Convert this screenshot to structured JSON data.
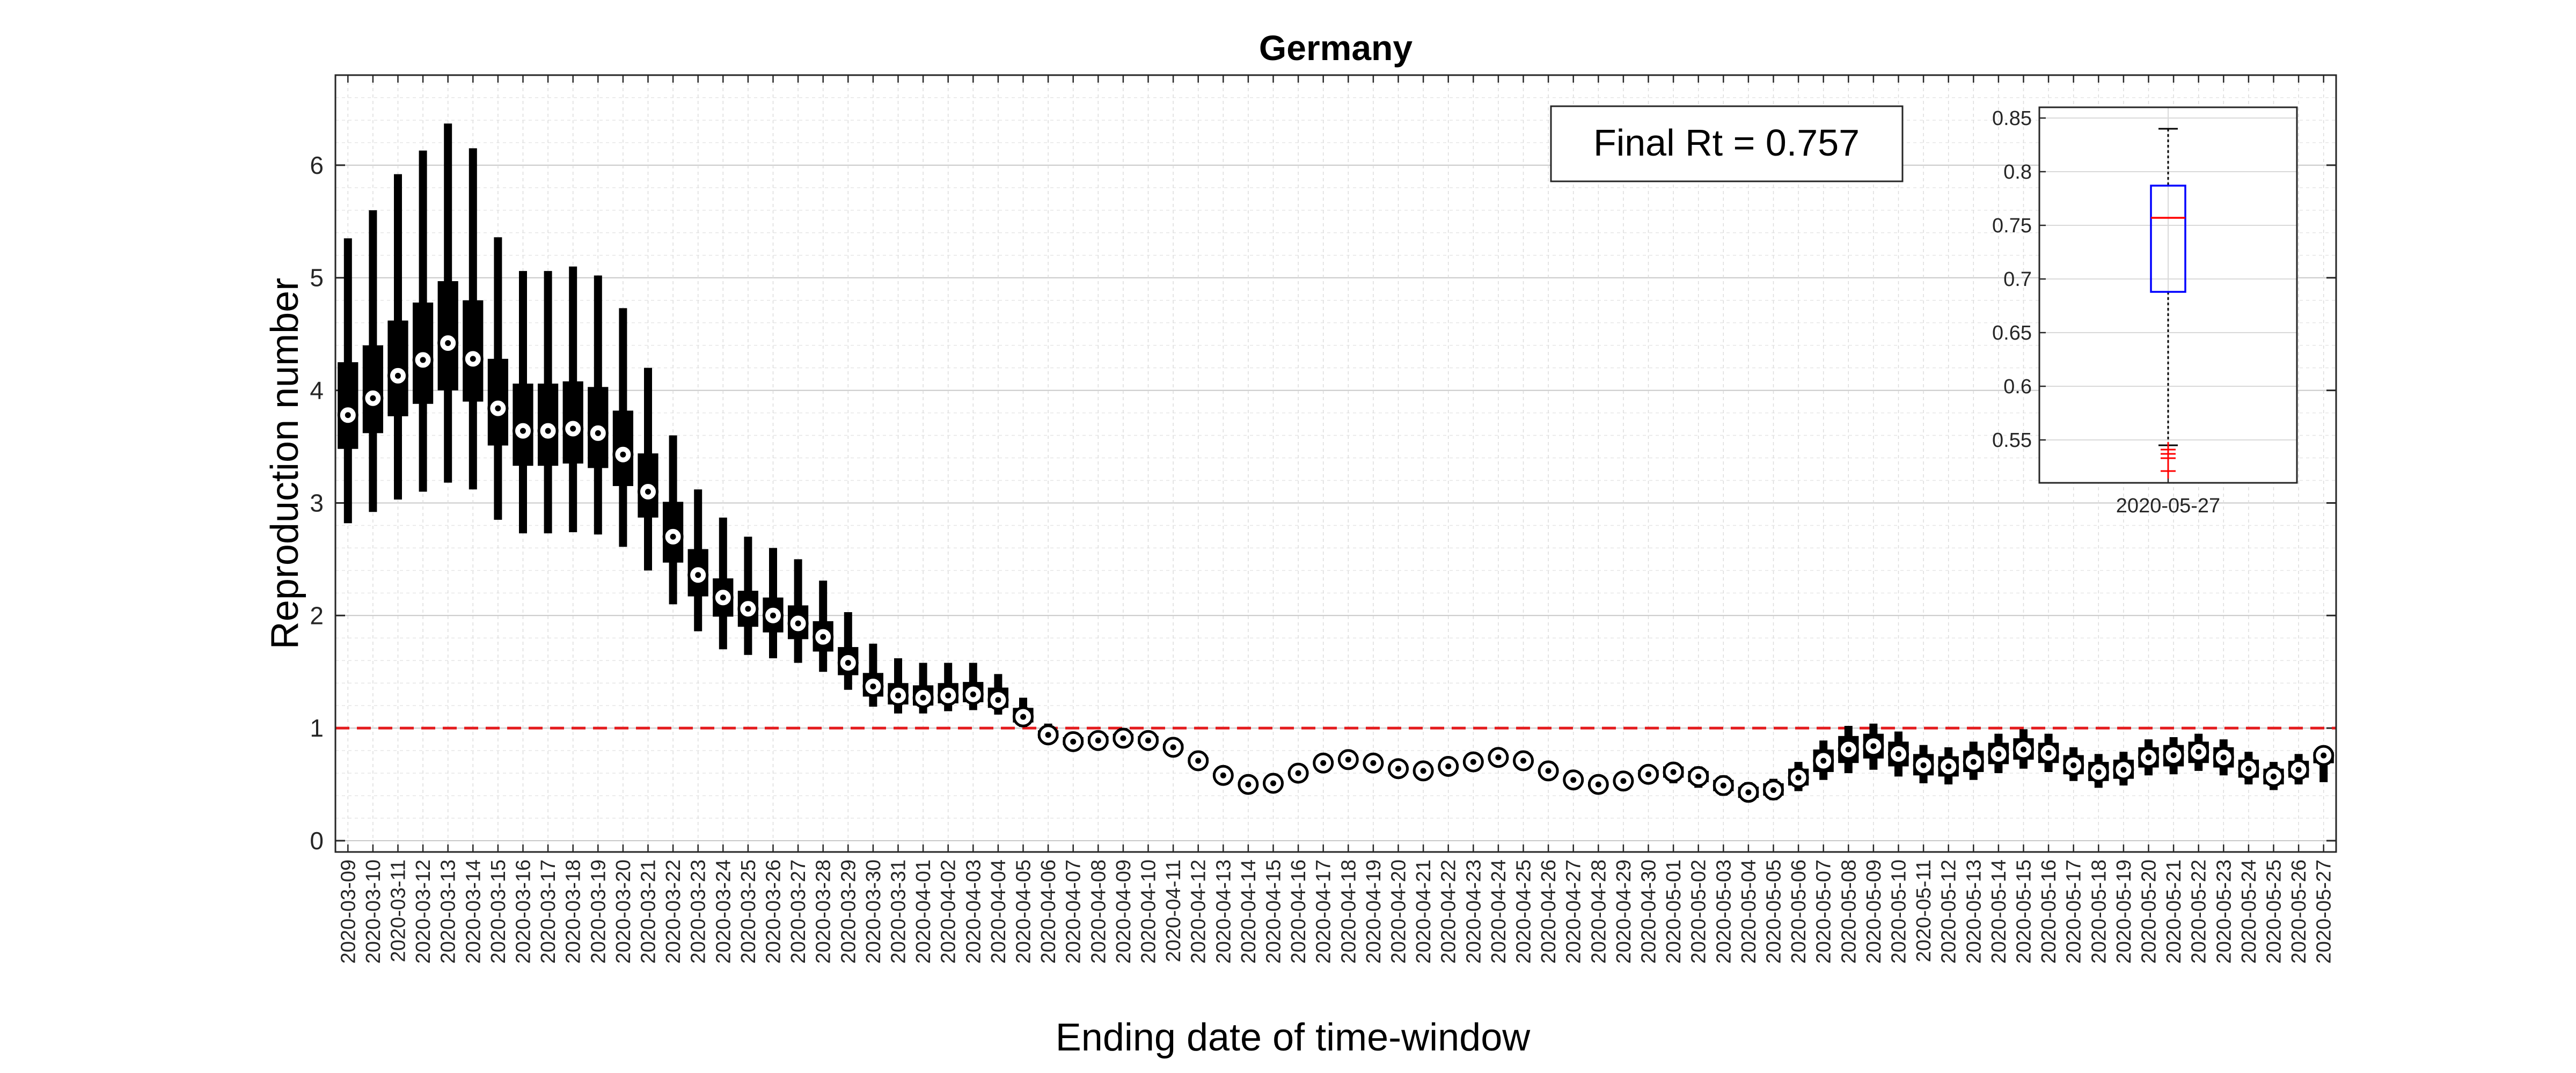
{
  "chart_data": [
    {
      "type": "box",
      "title": "Germany",
      "xlabel": "Ending date of time-window",
      "ylabel": "Reproduction number",
      "ylim": [
        -0.1,
        6.8
      ],
      "yticks": [
        0,
        1,
        2,
        3,
        4,
        5,
        6
      ],
      "grid": true,
      "reference_line": {
        "y": 1,
        "style": "dashed",
        "color": "#e41a1c"
      },
      "annotation": "Final Rt = 0.757",
      "categories": [
        "2020-03-09",
        "2020-03-10",
        "2020-03-11",
        "2020-03-12",
        "2020-03-13",
        "2020-03-14",
        "2020-03-15",
        "2020-03-16",
        "2020-03-17",
        "2020-03-18",
        "2020-03-19",
        "2020-03-20",
        "2020-03-21",
        "2020-03-22",
        "2020-03-23",
        "2020-03-24",
        "2020-03-25",
        "2020-03-26",
        "2020-03-27",
        "2020-03-28",
        "2020-03-29",
        "2020-03-30",
        "2020-03-31",
        "2020-04-01",
        "2020-04-02",
        "2020-04-03",
        "2020-04-04",
        "2020-04-05",
        "2020-04-06",
        "2020-04-07",
        "2020-04-08",
        "2020-04-09",
        "2020-04-10",
        "2020-04-11",
        "2020-04-12",
        "2020-04-13",
        "2020-04-14",
        "2020-04-15",
        "2020-04-16",
        "2020-04-17",
        "2020-04-18",
        "2020-04-19",
        "2020-04-20",
        "2020-04-21",
        "2020-04-22",
        "2020-04-23",
        "2020-04-24",
        "2020-04-25",
        "2020-04-26",
        "2020-04-27",
        "2020-04-28",
        "2020-04-29",
        "2020-04-30",
        "2020-05-01",
        "2020-05-02",
        "2020-05-03",
        "2020-05-04",
        "2020-05-05",
        "2020-05-06",
        "2020-05-07",
        "2020-05-08",
        "2020-05-09",
        "2020-05-10",
        "2020-05-11",
        "2020-05-12",
        "2020-05-13",
        "2020-05-14",
        "2020-05-15",
        "2020-05-16",
        "2020-05-17",
        "2020-05-18",
        "2020-05-19",
        "2020-05-20",
        "2020-05-21",
        "2020-05-22",
        "2020-05-23",
        "2020-05-24",
        "2020-05-25",
        "2020-05-26",
        "2020-05-27"
      ],
      "median": [
        3.78,
        3.93,
        4.13,
        4.27,
        4.42,
        4.28,
        3.84,
        3.64,
        3.64,
        3.66,
        3.62,
        3.43,
        3.1,
        2.7,
        2.36,
        2.16,
        2.06,
        2.0,
        1.93,
        1.81,
        1.58,
        1.37,
        1.29,
        1.27,
        1.29,
        1.3,
        1.25,
        1.1,
        0.94,
        0.88,
        0.89,
        0.91,
        0.89,
        0.83,
        0.71,
        0.58,
        0.5,
        0.51,
        0.6,
        0.69,
        0.72,
        0.69,
        0.64,
        0.62,
        0.66,
        0.7,
        0.74,
        0.71,
        0.62,
        0.54,
        0.5,
        0.53,
        0.59,
        0.61,
        0.57,
        0.49,
        0.43,
        0.45,
        0.56,
        0.71,
        0.81,
        0.84,
        0.77,
        0.67,
        0.66,
        0.7,
        0.77,
        0.81,
        0.78,
        0.67,
        0.61,
        0.63,
        0.74,
        0.76,
        0.79,
        0.74,
        0.64,
        0.57,
        0.63,
        0.757
      ],
      "q1": [
        3.48,
        3.62,
        3.77,
        3.88,
        4.0,
        3.9,
        3.51,
        3.33,
        3.33,
        3.35,
        3.31,
        3.15,
        2.87,
        2.47,
        2.17,
        1.99,
        1.9,
        1.85,
        1.79,
        1.68,
        1.47,
        1.28,
        1.21,
        1.2,
        1.22,
        1.23,
        1.18,
        1.05,
        0.91,
        0.85,
        0.86,
        0.88,
        0.86,
        0.81,
        0.69,
        0.57,
        0.49,
        0.5,
        0.59,
        0.68,
        0.71,
        0.68,
        0.63,
        0.61,
        0.65,
        0.69,
        0.72,
        0.69,
        0.6,
        0.52,
        0.48,
        0.51,
        0.56,
        0.56,
        0.52,
        0.44,
        0.38,
        0.4,
        0.49,
        0.61,
        0.69,
        0.73,
        0.66,
        0.58,
        0.57,
        0.61,
        0.68,
        0.72,
        0.69,
        0.59,
        0.53,
        0.55,
        0.65,
        0.66,
        0.69,
        0.65,
        0.56,
        0.5,
        0.56,
        0.688
      ],
      "q3": [
        4.25,
        4.4,
        4.62,
        4.78,
        4.97,
        4.8,
        4.28,
        4.06,
        4.06,
        4.08,
        4.03,
        3.82,
        3.44,
        3.01,
        2.59,
        2.33,
        2.22,
        2.16,
        2.09,
        1.95,
        1.72,
        1.49,
        1.4,
        1.38,
        1.4,
        1.41,
        1.36,
        1.18,
        0.98,
        0.92,
        0.93,
        0.95,
        0.93,
        0.86,
        0.74,
        0.6,
        0.52,
        0.53,
        0.62,
        0.71,
        0.74,
        0.71,
        0.66,
        0.64,
        0.68,
        0.72,
        0.76,
        0.73,
        0.64,
        0.56,
        0.52,
        0.55,
        0.63,
        0.66,
        0.62,
        0.54,
        0.48,
        0.51,
        0.64,
        0.81,
        0.93,
        0.95,
        0.88,
        0.77,
        0.75,
        0.8,
        0.87,
        0.91,
        0.87,
        0.76,
        0.7,
        0.72,
        0.83,
        0.85,
        0.88,
        0.83,
        0.72,
        0.64,
        0.71,
        0.787
      ],
      "whisker_low": [
        2.82,
        2.92,
        3.03,
        3.1,
        3.18,
        3.12,
        2.85,
        2.73,
        2.73,
        2.74,
        2.72,
        2.61,
        2.4,
        2.1,
        1.86,
        1.7,
        1.65,
        1.62,
        1.58,
        1.5,
        1.34,
        1.19,
        1.13,
        1.13,
        1.15,
        1.16,
        1.12,
        1.01,
        0.89,
        0.84,
        0.85,
        0.87,
        0.85,
        0.8,
        0.68,
        0.56,
        0.48,
        0.49,
        0.58,
        0.67,
        0.7,
        0.67,
        0.62,
        0.6,
        0.64,
        0.68,
        0.71,
        0.68,
        0.59,
        0.51,
        0.47,
        0.49,
        0.53,
        0.51,
        0.47,
        0.4,
        0.35,
        0.36,
        0.44,
        0.54,
        0.6,
        0.63,
        0.57,
        0.51,
        0.5,
        0.54,
        0.6,
        0.64,
        0.61,
        0.53,
        0.47,
        0.49,
        0.58,
        0.59,
        0.62,
        0.58,
        0.5,
        0.45,
        0.5,
        0.52
      ],
      "whisker_high": [
        5.35,
        5.6,
        5.92,
        6.13,
        6.37,
        6.15,
        5.36,
        5.06,
        5.06,
        5.1,
        5.02,
        4.73,
        4.2,
        3.6,
        3.12,
        2.87,
        2.7,
        2.6,
        2.5,
        2.31,
        2.03,
        1.75,
        1.62,
        1.58,
        1.58,
        1.58,
        1.48,
        1.27,
        1.04,
        0.96,
        0.97,
        1.0,
        0.97,
        0.9,
        0.77,
        0.63,
        0.54,
        0.55,
        0.64,
        0.73,
        0.76,
        0.73,
        0.68,
        0.66,
        0.7,
        0.74,
        0.78,
        0.75,
        0.66,
        0.58,
        0.54,
        0.57,
        0.65,
        0.69,
        0.66,
        0.58,
        0.52,
        0.55,
        0.7,
        0.89,
        1.02,
        1.04,
        0.97,
        0.85,
        0.83,
        0.88,
        0.95,
        0.99,
        0.95,
        0.83,
        0.77,
        0.79,
        0.9,
        0.92,
        0.95,
        0.9,
        0.79,
        0.7,
        0.77,
        0.84
      ]
    },
    {
      "type": "box",
      "categories": [
        "2020-05-27"
      ],
      "ylim": [
        0.51,
        0.86
      ],
      "yticks": [
        0.55,
        0.6,
        0.65,
        0.7,
        0.75,
        0.8,
        0.85
      ],
      "ytick_labels": [
        "0.55",
        "0.6",
        "0.65",
        "0.7",
        "0.75",
        "0.8",
        "0.85"
      ],
      "grid": true,
      "median": 0.757,
      "q1": 0.688,
      "q3": 0.787,
      "whisker_low": 0.545,
      "whisker_high": 0.84,
      "outliers": [
        0.521,
        0.533,
        0.537,
        0.541
      ],
      "box_color": "#0000ff",
      "median_color": "#ff0000",
      "outlier_color": "#ff0000"
    }
  ]
}
